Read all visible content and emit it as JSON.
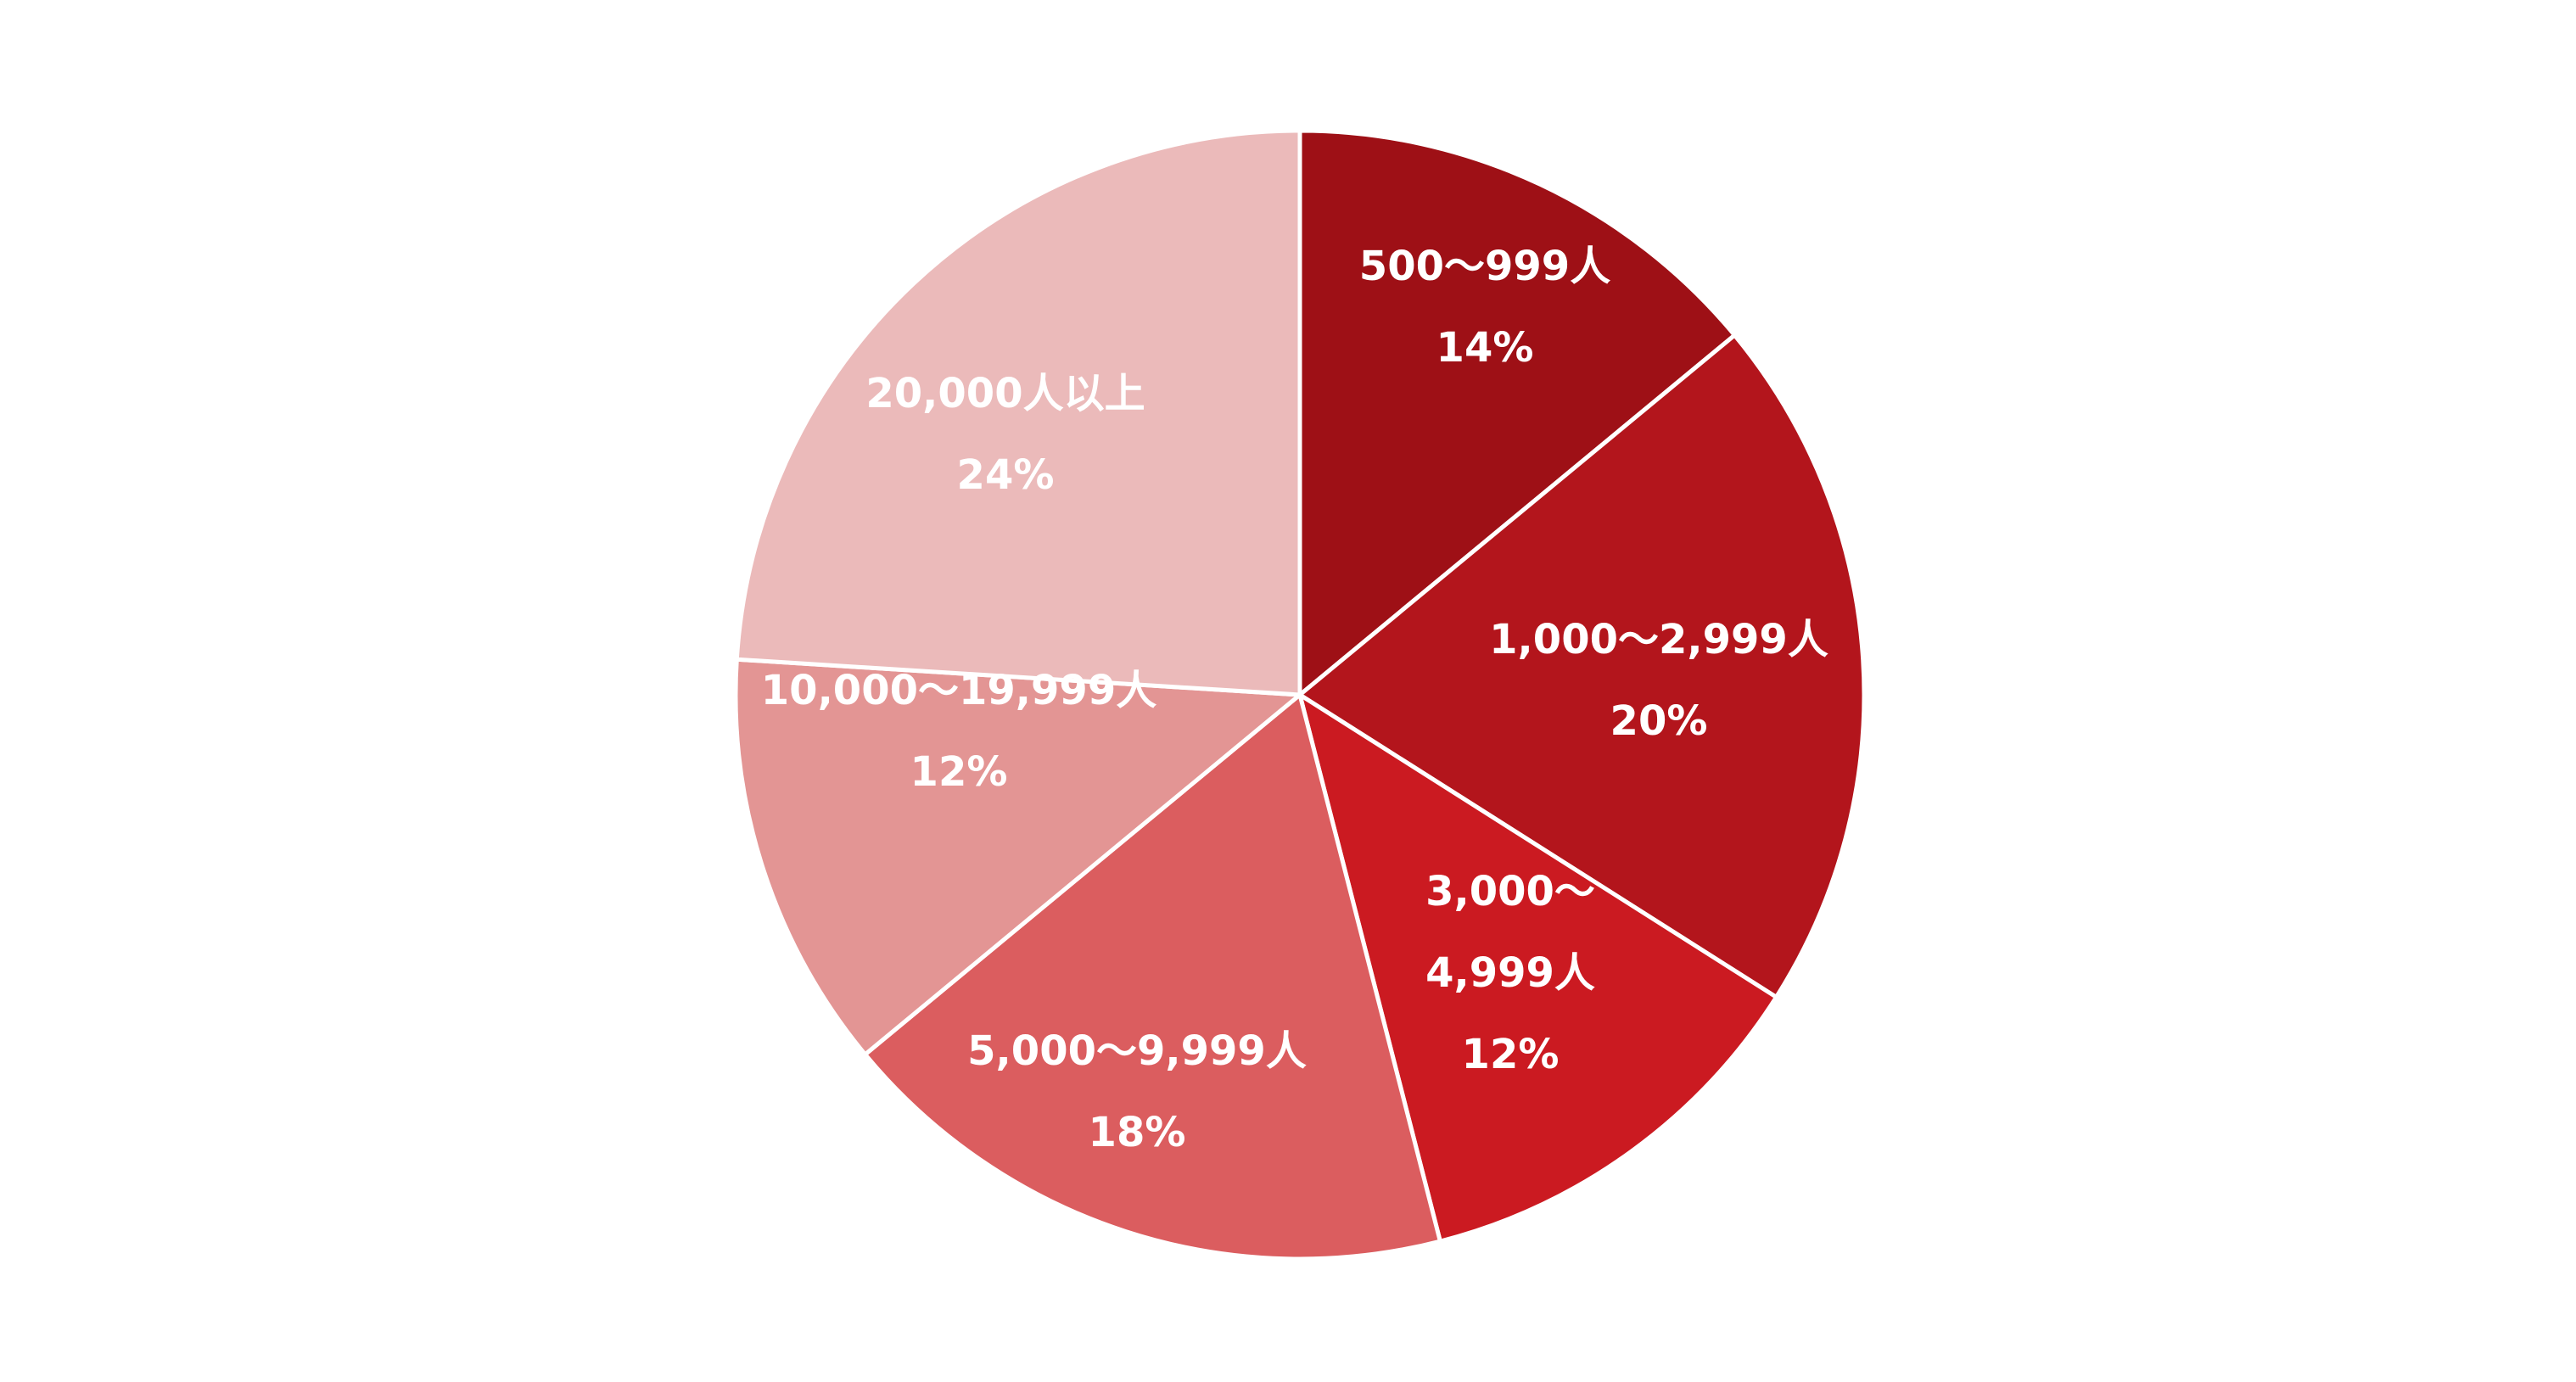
{
  "chart_data": {
    "type": "pie",
    "slices": [
      {
        "label_lines": [
          "500〜999人"
        ],
        "percent_label": "14%",
        "value": 14,
        "color": "#9E1016"
      },
      {
        "label_lines": [
          "1,000〜2,999人"
        ],
        "percent_label": "20%",
        "value": 20,
        "color": "#B3151C"
      },
      {
        "label_lines": [
          "3,000〜",
          "4,999人"
        ],
        "percent_label": "12%",
        "value": 12,
        "color": "#CB1A21"
      },
      {
        "label_lines": [
          "5,000〜9,999人"
        ],
        "percent_label": "18%",
        "value": 18,
        "color": "#DB5D5F"
      },
      {
        "label_lines": [
          "10,000〜19,999人"
        ],
        "percent_label": "12%",
        "value": 12,
        "color": "#E39594"
      },
      {
        "label_lines": [
          "20,000人以上"
        ],
        "percent_label": "24%",
        "value": 24,
        "color": "#EBBABA"
      }
    ],
    "start": "12 o'clock",
    "direction": "clockwise",
    "slice_border_color": "#FFFFFF"
  }
}
